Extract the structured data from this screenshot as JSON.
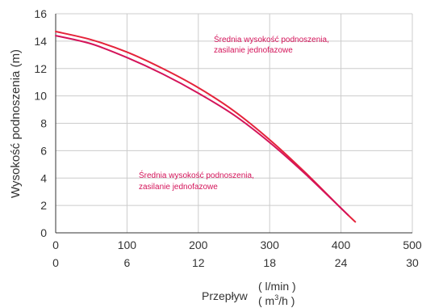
{
  "chart_data": {
    "type": "line",
    "ylabel": "Wysokość podnoszenia (m)",
    "xlabel": "Przepływ",
    "xunit_primary": "( l/min )",
    "xunit_secondary_pre": "( m",
    "xunit_secondary_sup": "3",
    "xunit_secondary_post": "/h )",
    "xlim": [
      0,
      500
    ],
    "ylim": [
      0,
      16
    ],
    "xticks_primary": [
      "0",
      "100",
      "200",
      "300",
      "400",
      "500"
    ],
    "xticks_secondary": [
      "0",
      "6",
      "12",
      "18",
      "24",
      "30"
    ],
    "yticks": [
      "0",
      "2",
      "4",
      "6",
      "8",
      "10",
      "12",
      "14",
      "16"
    ],
    "grid": true,
    "series": [
      {
        "color": "#e5233b",
        "x": [
          0,
          50,
          100,
          150,
          200,
          250,
          300,
          350,
          400,
          420
        ],
        "y": [
          14.7,
          14.1,
          13.2,
          12.0,
          10.6,
          8.9,
          6.8,
          4.4,
          1.8,
          0.8
        ]
      },
      {
        "color": "#d4145a",
        "x": [
          0,
          50,
          100,
          150,
          200,
          250,
          300,
          350,
          400,
          410
        ],
        "y": [
          14.4,
          13.8,
          12.8,
          11.6,
          10.2,
          8.6,
          6.6,
          4.3,
          1.8,
          1.3
        ]
      }
    ],
    "annotations": [
      {
        "lines": [
          "Średnia wysokość podnoszenia,",
          "zasilanie jednofazowe"
        ]
      },
      {
        "lines": [
          "Średnia wysokość podnoszenia,",
          "zasilanie jednofazowe"
        ]
      }
    ]
  }
}
